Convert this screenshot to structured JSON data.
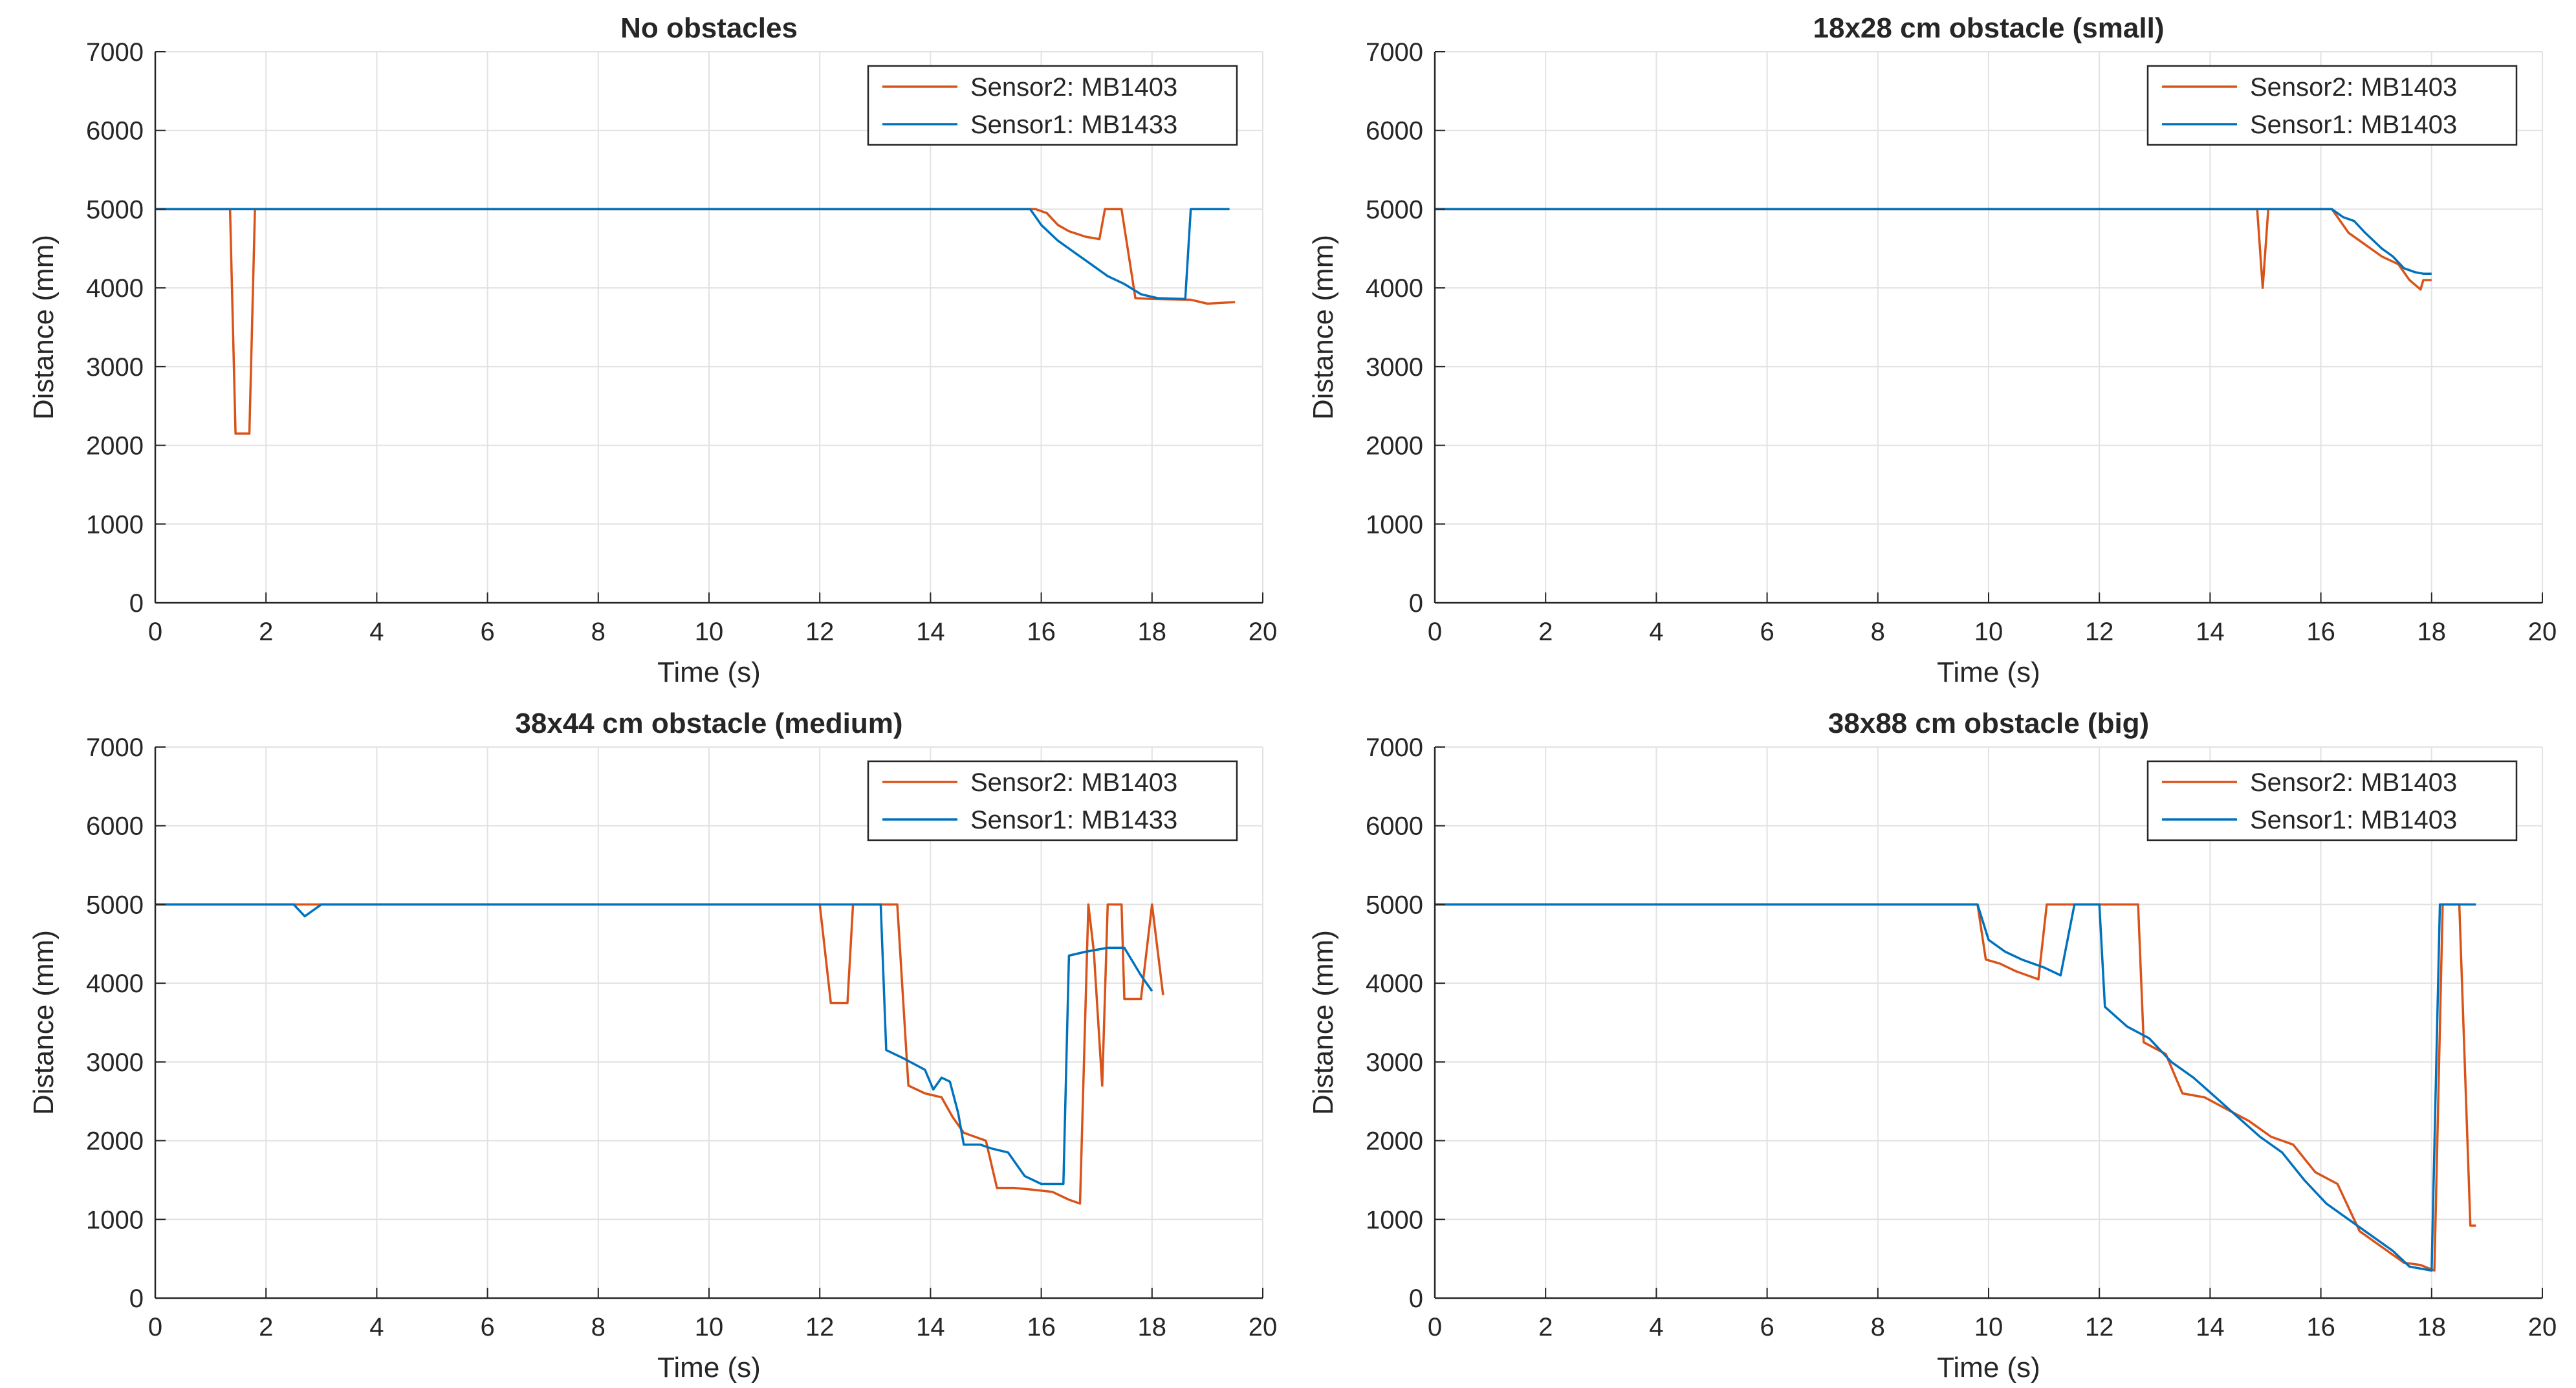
{
  "colors": {
    "sensor2": "#D95319",
    "sensor1": "#0072BD",
    "axis": "#262626",
    "grid": "#E2E2E2",
    "legend_border": "#262626",
    "background": "#FFFFFF"
  },
  "chart_data": [
    {
      "type": "line",
      "title": "No obstacles",
      "xlabel": "Time (s)",
      "ylabel": "Distance (mm)",
      "xlim": [
        0,
        20
      ],
      "ylim": [
        0,
        7000
      ],
      "xticks": [
        0,
        2,
        4,
        6,
        8,
        10,
        12,
        14,
        16,
        18,
        20
      ],
      "yticks": [
        0,
        1000,
        2000,
        3000,
        4000,
        5000,
        6000,
        7000
      ],
      "grid": true,
      "legend_position": "top-right",
      "series": [
        {
          "name": "Sensor2: MB1403",
          "color_key": "sensor2",
          "x": [
            0,
            1.35,
            1.45,
            1.7,
            1.8,
            15.9,
            16.1,
            16.3,
            16.5,
            16.8,
            17.05,
            17.15,
            17.45,
            17.7,
            18.0,
            18.7,
            19.0,
            19.5
          ],
          "y": [
            5000,
            5000,
            2150,
            2150,
            5000,
            5000,
            4950,
            4800,
            4720,
            4650,
            4620,
            5000,
            5000,
            3870,
            3860,
            3850,
            3800,
            3820
          ]
        },
        {
          "name": "Sensor1: MB1433",
          "color_key": "sensor1",
          "x": [
            0,
            15.8,
            16.0,
            16.3,
            16.6,
            16.9,
            17.2,
            17.5,
            17.8,
            18.1,
            18.6,
            18.7,
            19.0,
            19.4
          ],
          "y": [
            5000,
            5000,
            4800,
            4600,
            4450,
            4300,
            4150,
            4050,
            3920,
            3870,
            3860,
            5000,
            5000,
            5000
          ]
        }
      ]
    },
    {
      "type": "line",
      "title": "18x28 cm obstacle (small)",
      "xlabel": "Time (s)",
      "ylabel": "Distance (mm)",
      "xlim": [
        0,
        20
      ],
      "ylim": [
        0,
        7000
      ],
      "xticks": [
        0,
        2,
        4,
        6,
        8,
        10,
        12,
        14,
        16,
        18,
        20
      ],
      "yticks": [
        0,
        1000,
        2000,
        3000,
        4000,
        5000,
        6000,
        7000
      ],
      "grid": true,
      "legend_position": "top-right",
      "series": [
        {
          "name": "Sensor2: MB1403",
          "color_key": "sensor2",
          "x": [
            0,
            14.85,
            14.95,
            15.05,
            16.2,
            16.5,
            16.8,
            17.1,
            17.4,
            17.6,
            17.8,
            17.85,
            18.0
          ],
          "y": [
            5000,
            5000,
            4000,
            5000,
            5000,
            4700,
            4550,
            4400,
            4300,
            4100,
            3980,
            4100,
            4100
          ]
        },
        {
          "name": "Sensor1: MB1403",
          "color_key": "sensor1",
          "x": [
            0,
            16.2,
            16.4,
            16.6,
            16.8,
            17.1,
            17.3,
            17.5,
            17.7,
            17.85,
            18.0
          ],
          "y": [
            5000,
            5000,
            4900,
            4850,
            4700,
            4500,
            4400,
            4250,
            4200,
            4180,
            4180
          ]
        }
      ]
    },
    {
      "type": "line",
      "title": "38x44 cm obstacle (medium)",
      "xlabel": "Time (s)",
      "ylabel": "Distance (mm)",
      "xlim": [
        0,
        20
      ],
      "ylim": [
        0,
        7000
      ],
      "xticks": [
        0,
        2,
        4,
        6,
        8,
        10,
        12,
        14,
        16,
        18,
        20
      ],
      "yticks": [
        0,
        1000,
        2000,
        3000,
        4000,
        5000,
        6000,
        7000
      ],
      "grid": true,
      "legend_position": "top-right",
      "series": [
        {
          "name": "Sensor2: MB1403",
          "color_key": "sensor2",
          "x": [
            0,
            12.0,
            12.2,
            12.5,
            12.6,
            13.1,
            13.4,
            13.6,
            13.9,
            14.2,
            14.4,
            14.6,
            14.8,
            15.0,
            15.2,
            15.5,
            15.8,
            16.2,
            16.5,
            16.7,
            16.85,
            16.95,
            17.1,
            17.2,
            17.45,
            17.5,
            17.8,
            18.0,
            18.2
          ],
          "y": [
            5000,
            5000,
            3750,
            3750,
            5000,
            5000,
            5000,
            2700,
            2600,
            2550,
            2300,
            2100,
            2050,
            2000,
            1400,
            1400,
            1380,
            1350,
            1250,
            1200,
            5000,
            4400,
            2700,
            5000,
            5000,
            3800,
            3800,
            5000,
            3850
          ]
        },
        {
          "name": "Sensor1: MB1433",
          "color_key": "sensor1",
          "x": [
            0,
            2.5,
            2.7,
            2.9,
            3.0,
            12.0,
            12.6,
            13.1,
            13.2,
            13.5,
            13.9,
            14.05,
            14.2,
            14.35,
            14.5,
            14.6,
            14.9,
            15.1,
            15.4,
            15.7,
            16.0,
            16.4,
            16.5,
            16.8,
            17.2,
            17.5,
            17.8,
            18.0
          ],
          "y": [
            5000,
            5000,
            4850,
            4950,
            5000,
            5000,
            5000,
            5000,
            3150,
            3050,
            2900,
            2650,
            2800,
            2750,
            2350,
            1950,
            1950,
            1900,
            1850,
            1550,
            1450,
            1450,
            4350,
            4400,
            4450,
            4450,
            4100,
            3900
          ]
        }
      ]
    },
    {
      "type": "line",
      "title": "38x88 cm obstacle (big)",
      "xlabel": "Time (s)",
      "ylabel": "Distance (mm)",
      "xlim": [
        0,
        20
      ],
      "ylim": [
        0,
        7000
      ],
      "xticks": [
        0,
        2,
        4,
        6,
        8,
        10,
        12,
        14,
        16,
        18,
        20
      ],
      "yticks": [
        0,
        1000,
        2000,
        3000,
        4000,
        5000,
        6000,
        7000
      ],
      "grid": true,
      "legend_position": "top-right",
      "series": [
        {
          "name": "Sensor2: MB1403",
          "color_key": "sensor2",
          "x": [
            0,
            9.8,
            9.95,
            10.2,
            10.5,
            10.9,
            11.05,
            11.2,
            12.7,
            12.8,
            13.2,
            13.5,
            13.9,
            14.3,
            14.7,
            15.1,
            15.5,
            15.9,
            16.3,
            16.7,
            17.1,
            17.5,
            17.8,
            18.05,
            18.2,
            18.5,
            18.7,
            18.8
          ],
          "y": [
            5000,
            5000,
            4300,
            4250,
            4150,
            4050,
            5000,
            5000,
            5000,
            3250,
            3100,
            2600,
            2550,
            2400,
            2250,
            2050,
            1950,
            1600,
            1450,
            850,
            650,
            450,
            420,
            350,
            5000,
            5000,
            920,
            920
          ]
        },
        {
          "name": "Sensor1: MB1403",
          "color_key": "sensor1",
          "x": [
            0,
            9.8,
            10.0,
            10.3,
            10.6,
            11.0,
            11.3,
            11.55,
            11.65,
            12.0,
            12.1,
            12.5,
            12.9,
            13.3,
            13.7,
            14.1,
            14.5,
            14.9,
            15.3,
            15.7,
            16.1,
            16.5,
            16.9,
            17.3,
            17.6,
            18.0,
            18.15,
            18.4,
            18.8
          ],
          "y": [
            5000,
            5000,
            4550,
            4400,
            4300,
            4200,
            4100,
            5000,
            5000,
            5000,
            3700,
            3450,
            3300,
            3000,
            2800,
            2550,
            2300,
            2050,
            1850,
            1500,
            1200,
            1000,
            800,
            600,
            400,
            350,
            5000,
            5000,
            5000
          ]
        }
      ]
    }
  ]
}
